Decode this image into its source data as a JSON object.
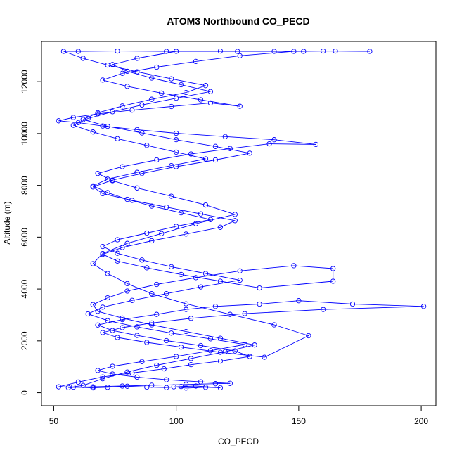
{
  "chart_data": {
    "type": "line",
    "title": "ATOM3 Northbound CO_PECD",
    "xlabel": "CO_PECD",
    "ylabel": "Altitude (m)",
    "xlim": [
      45,
      206
    ],
    "ylim": [
      -500,
      13550
    ],
    "x_ticks": [
      50,
      100,
      150,
      200
    ],
    "y_ticks": [
      0,
      2000,
      4000,
      6000,
      8000,
      10000,
      12000
    ],
    "markers": "open-circle",
    "series_color": "#0000ff",
    "grid": false,
    "series": [
      {
        "points": [
          [
            99,
            230
          ],
          [
            104,
            180
          ],
          [
            112,
            210
          ],
          [
            118,
            195
          ],
          [
            108,
            260
          ],
          [
            102,
            240
          ],
          [
            96,
            200
          ],
          [
            88,
            220
          ],
          [
            80,
            250
          ],
          [
            72,
            210
          ],
          [
            66,
            190
          ],
          [
            58,
            220
          ],
          [
            52,
            230
          ],
          [
            60,
            410
          ],
          [
            70,
            610
          ],
          [
            82,
            760
          ],
          [
            95,
            920
          ],
          [
            106,
            1080
          ],
          [
            118,
            1220
          ],
          [
            130,
            1400
          ],
          [
            124,
            1610
          ],
          [
            110,
            1820
          ],
          [
            96,
            2010
          ],
          [
            84,
            2210
          ],
          [
            74,
            2400
          ],
          [
            68,
            2610
          ],
          [
            78,
            2820
          ],
          [
            92,
            3020
          ],
          [
            104,
            3210
          ],
          [
            116,
            3330
          ],
          [
            134,
            3420
          ],
          [
            150,
            3550
          ],
          [
            172,
            3420
          ],
          [
            201,
            3330
          ],
          [
            160,
            3210
          ],
          [
            128,
            3050
          ],
          [
            106,
            2870
          ],
          [
            90,
            2690
          ],
          [
            78,
            2510
          ],
          [
            70,
            2320
          ],
          [
            76,
            2130
          ],
          [
            88,
            1940
          ],
          [
            102,
            1760
          ],
          [
            118,
            1560
          ],
          [
            136,
            1370
          ],
          [
            154,
            2200
          ],
          [
            140,
            2620
          ],
          [
            122,
            3020
          ],
          [
            104,
            3430
          ],
          [
            90,
            3820
          ],
          [
            80,
            4210
          ],
          [
            72,
            4600
          ],
          [
            66,
            4980
          ],
          [
            70,
            5370
          ],
          [
            80,
            5760
          ],
          [
            94,
            6140
          ],
          [
            108,
            6520
          ],
          [
            124,
            6880
          ],
          [
            112,
            7240
          ],
          [
            98,
            7580
          ],
          [
            84,
            7900
          ],
          [
            74,
            8180
          ],
          [
            68,
            8460
          ],
          [
            78,
            8720
          ],
          [
            92,
            8980
          ],
          [
            106,
            9210
          ],
          [
            122,
            9420
          ],
          [
            138,
            9600
          ],
          [
            157,
            9580
          ],
          [
            140,
            9760
          ],
          [
            120,
            9880
          ],
          [
            100,
            10010
          ],
          [
            84,
            10150
          ],
          [
            70,
            10290
          ],
          [
            60,
            10420
          ],
          [
            52,
            10490
          ],
          [
            58,
            10620
          ],
          [
            68,
            10760
          ],
          [
            82,
            10900
          ],
          [
            98,
            11040
          ],
          [
            114,
            11180
          ],
          [
            126,
            11050
          ],
          [
            110,
            11300
          ],
          [
            94,
            11560
          ],
          [
            80,
            11820
          ],
          [
            70,
            12060
          ],
          [
            78,
            12320
          ],
          [
            92,
            12560
          ],
          [
            108,
            12780
          ],
          [
            126,
            13000
          ],
          [
            148,
            13170
          ],
          [
            165,
            13180
          ],
          [
            179,
            13170
          ],
          [
            160,
            13180
          ],
          [
            140,
            13170
          ],
          [
            118,
            13180
          ],
          [
            96,
            13170
          ],
          [
            76,
            13180
          ],
          [
            60,
            13170
          ],
          [
            54,
            13170
          ],
          [
            62,
            12900
          ],
          [
            72,
            12640
          ],
          [
            84,
            12380
          ],
          [
            98,
            12110
          ],
          [
            112,
            11850
          ],
          [
            104,
            11580
          ],
          [
            90,
            11320
          ],
          [
            78,
            11060
          ],
          [
            68,
            10800
          ],
          [
            62,
            10540
          ],
          [
            72,
            10280
          ],
          [
            86,
            10020
          ],
          [
            100,
            9760
          ],
          [
            116,
            9500
          ],
          [
            130,
            9240
          ],
          [
            116,
            8980
          ],
          [
            100,
            8720
          ],
          [
            86,
            8460
          ],
          [
            74,
            8200
          ],
          [
            66,
            7940
          ],
          [
            70,
            7680
          ],
          [
            82,
            7420
          ],
          [
            96,
            7160
          ],
          [
            110,
            6900
          ],
          [
            124,
            6640
          ],
          [
            118,
            6380
          ],
          [
            104,
            6120
          ],
          [
            90,
            5860
          ],
          [
            78,
            5600
          ],
          [
            70,
            5340
          ],
          [
            76,
            5080
          ],
          [
            88,
            4820
          ],
          [
            102,
            4560
          ],
          [
            118,
            4300
          ],
          [
            134,
            4040
          ],
          [
            164,
            4300
          ],
          [
            164,
            4790
          ],
          [
            148,
            4900
          ],
          [
            126,
            4700
          ],
          [
            108,
            4440
          ],
          [
            92,
            4180
          ],
          [
            80,
            3920
          ],
          [
            72,
            3660
          ],
          [
            66,
            3400
          ],
          [
            68,
            3140
          ],
          [
            78,
            2880
          ],
          [
            90,
            2620
          ],
          [
            104,
            2360
          ],
          [
            118,
            2100
          ],
          [
            132,
            1840
          ],
          [
            120,
            1580
          ],
          [
            106,
            1320
          ],
          [
            92,
            1060
          ],
          [
            80,
            800
          ],
          [
            70,
            540
          ],
          [
            62,
            280
          ],
          [
            56,
            200
          ],
          [
            66,
            230
          ],
          [
            78,
            260
          ],
          [
            90,
            290
          ],
          [
            104,
            320
          ],
          [
            116,
            350
          ],
          [
            122,
            360
          ],
          [
            110,
            420
          ],
          [
            96,
            500
          ],
          [
            84,
            600
          ],
          [
            74,
            720
          ],
          [
            68,
            860
          ],
          [
            74,
            1020
          ],
          [
            86,
            1200
          ],
          [
            100,
            1400
          ],
          [
            114,
            1620
          ],
          [
            128,
            1860
          ],
          [
            114,
            2080
          ],
          [
            98,
            2300
          ],
          [
            84,
            2540
          ],
          [
            72,
            2780
          ],
          [
            64,
            3040
          ],
          [
            70,
            3300
          ],
          [
            82,
            3560
          ],
          [
            96,
            3820
          ],
          [
            110,
            4080
          ],
          [
            126,
            4340
          ],
          [
            112,
            4600
          ],
          [
            98,
            4860
          ],
          [
            86,
            5120
          ],
          [
            76,
            5380
          ],
          [
            70,
            5640
          ],
          [
            76,
            5900
          ],
          [
            88,
            6160
          ],
          [
            100,
            6420
          ],
          [
            114,
            6680
          ],
          [
            102,
            6940
          ],
          [
            90,
            7200
          ],
          [
            80,
            7460
          ],
          [
            72,
            7720
          ],
          [
            66,
            7980
          ],
          [
            72,
            8240
          ],
          [
            84,
            8500
          ],
          [
            98,
            8760
          ],
          [
            112,
            9020
          ],
          [
            100,
            9280
          ],
          [
            88,
            9540
          ],
          [
            76,
            9800
          ],
          [
            66,
            10060
          ],
          [
            58,
            10320
          ],
          [
            64,
            10580
          ],
          [
            74,
            10840
          ],
          [
            86,
            11100
          ],
          [
            100,
            11360
          ],
          [
            114,
            11620
          ],
          [
            102,
            11880
          ],
          [
            90,
            12140
          ],
          [
            80,
            12400
          ],
          [
            74,
            12660
          ],
          [
            84,
            12900
          ],
          [
            100,
            13170
          ],
          [
            125,
            13170
          ],
          [
            152,
            13170
          ]
        ]
      }
    ]
  }
}
